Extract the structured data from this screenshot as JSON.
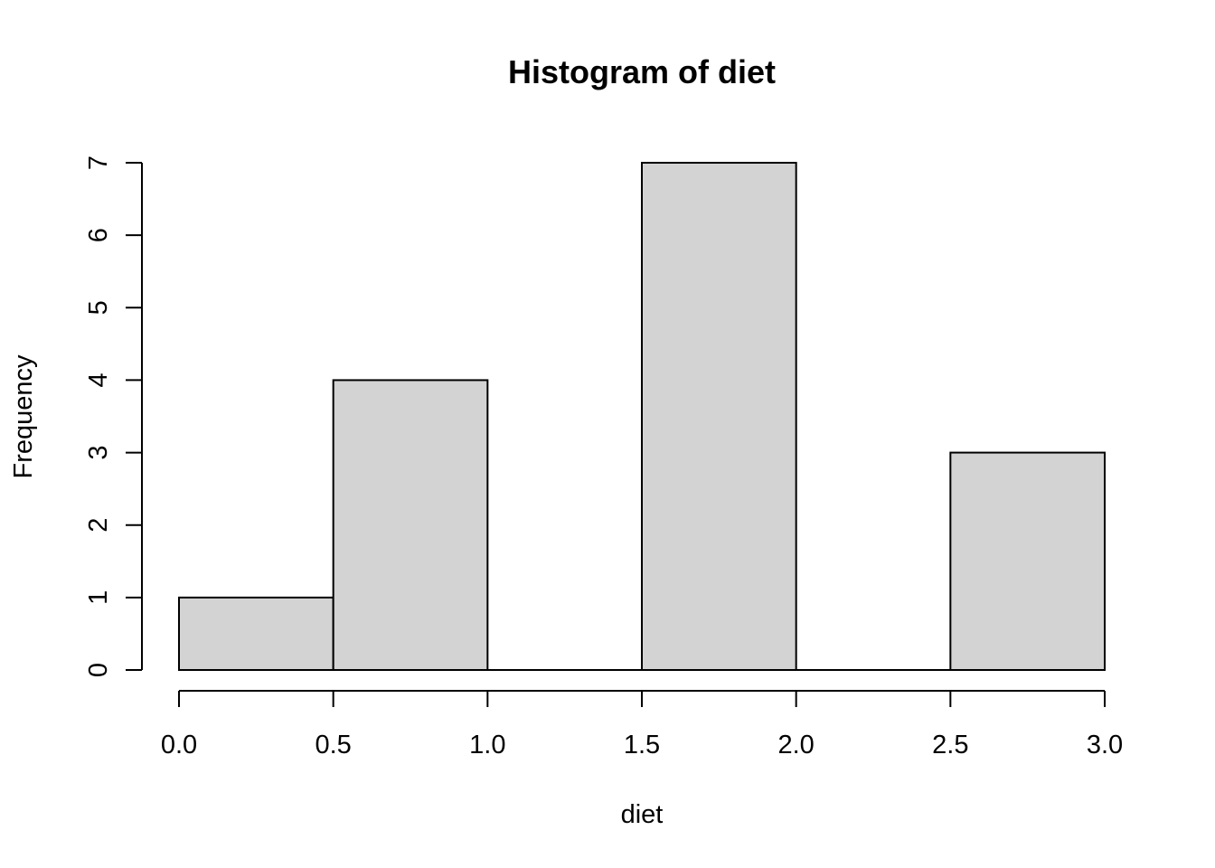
{
  "chart_data": {
    "type": "bar",
    "title": "Histogram of diet",
    "xlabel": "diet",
    "ylabel": "Frequency",
    "bins": [
      {
        "start": 0.0,
        "end": 0.5,
        "count": 1
      },
      {
        "start": 0.5,
        "end": 1.0,
        "count": 4
      },
      {
        "start": 1.0,
        "end": 1.5,
        "count": 0
      },
      {
        "start": 1.5,
        "end": 2.0,
        "count": 7
      },
      {
        "start": 2.0,
        "end": 2.5,
        "count": 0
      },
      {
        "start": 2.5,
        "end": 3.0,
        "count": 3
      }
    ],
    "xlim": [
      0,
      3
    ],
    "ylim": [
      0,
      7
    ],
    "x_ticks": [
      "0.0",
      "0.5",
      "1.0",
      "1.5",
      "2.0",
      "2.5",
      "3.0"
    ],
    "y_ticks": [
      "0",
      "1",
      "2",
      "3",
      "4",
      "5",
      "6",
      "7"
    ],
    "grid": false,
    "bar_color": "#d3d3d3"
  }
}
